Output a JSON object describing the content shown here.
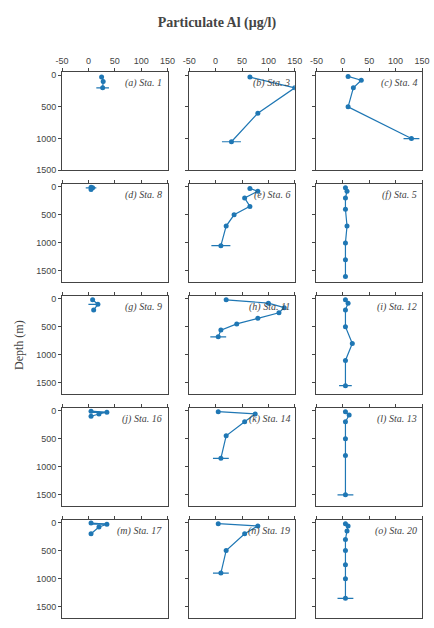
{
  "title": "Particulate Al (μg/l)",
  "ylabel": "Depth (m)",
  "chart_data": [
    {
      "type": "line",
      "title": "(a) Sta. 1",
      "x": [
        25,
        28,
        27
      ],
      "y": [
        30,
        100,
        200
      ],
      "errorbar": {
        "x": 27,
        "y": 200,
        "xerr": 12
      },
      "xlim": [
        -50,
        150
      ],
      "xticks": [
        -50,
        0,
        50,
        100,
        150
      ],
      "ylim": [
        1500,
        -50
      ],
      "yticks": [
        0,
        500,
        1000,
        1500
      ],
      "color": "#1f77b4",
      "marker": "circle",
      "grid": false
    },
    {
      "type": "line",
      "title": "(b) Sta. 3",
      "x": [
        65,
        150,
        80,
        30
      ],
      "y": [
        30,
        200,
        600,
        1050
      ],
      "errorbar": {
        "x": 30,
        "y": 1050,
        "xerr": 18
      },
      "xlim": [
        -50,
        150
      ],
      "xticks": [
        -50,
        0,
        50,
        100,
        150
      ],
      "ylim": [
        1500,
        -50
      ],
      "yticks": [
        0,
        500,
        1000,
        1500
      ],
      "tick_labels": "x",
      "color": "#1f77b4",
      "marker": "circle",
      "grid": false
    },
    {
      "type": "line",
      "title": "(c) Sta. 4",
      "x": [
        10,
        35,
        20,
        10,
        130
      ],
      "y": [
        20,
        80,
        200,
        500,
        1000
      ],
      "errorbar": {
        "x": 130,
        "y": 1000,
        "xerr": 15
      },
      "xlim": [
        -50,
        150
      ],
      "xticks": [
        -50,
        0,
        50,
        100,
        150
      ],
      "ylim": [
        1500,
        -50
      ],
      "yticks": [
        0,
        500,
        1000,
        1500
      ],
      "tick_labels": "x",
      "color": "#1f77b4",
      "marker": "circle",
      "grid": false
    },
    {
      "type": "line",
      "title": "(d) Sta. 8",
      "x": [
        5,
        8,
        5
      ],
      "y": [
        10,
        20,
        50
      ],
      "errorbar": {
        "x": 5,
        "y": 20,
        "xerr": 10
      },
      "xlim": [
        -50,
        150
      ],
      "xticks": [
        -50,
        0,
        50,
        100,
        150
      ],
      "ylim": [
        1700,
        -50
      ],
      "yticks": [
        0,
        500,
        1000,
        1500
      ],
      "tick_labels": "y",
      "color": "#1f77b4",
      "marker": "circle",
      "grid": false
    },
    {
      "type": "line",
      "title": "(e) Sta. 6",
      "x": [
        65,
        80,
        55,
        65,
        35,
        20,
        10
      ],
      "y": [
        30,
        80,
        200,
        350,
        500,
        700,
        1050
      ],
      "errorbar": {
        "x": 10,
        "y": 1050,
        "xerr": 18
      },
      "xlim": [
        -50,
        150
      ],
      "xticks": [
        -50,
        0,
        50,
        100,
        150
      ],
      "ylim": [
        1700,
        -50
      ],
      "yticks": [
        0,
        500,
        1000,
        1500
      ],
      "tick_labels": false,
      "color": "#1f77b4",
      "marker": "circle",
      "grid": false
    },
    {
      "type": "line",
      "title": "(f) Sta. 5",
      "x": [
        5,
        8,
        5,
        5,
        8,
        5,
        5,
        5
      ],
      "y": [
        20,
        80,
        200,
        400,
        700,
        1000,
        1300,
        1600
      ],
      "xlim": [
        -50,
        150
      ],
      "xticks": [
        -50,
        0,
        50,
        100,
        150
      ],
      "ylim": [
        1700,
        -50
      ],
      "yticks": [
        0,
        500,
        1000,
        1500
      ],
      "tick_labels": false,
      "color": "#1f77b4",
      "marker": "circle",
      "grid": false
    },
    {
      "type": "line",
      "title": "(g) Sta. 9",
      "x": [
        8,
        18,
        10
      ],
      "y": [
        20,
        100,
        200
      ],
      "errorbar": {
        "x": 10,
        "y": 100,
        "xerr": 10
      },
      "xlim": [
        -50,
        150
      ],
      "xticks": [
        -50,
        0,
        50,
        100,
        150
      ],
      "ylim": [
        1700,
        -50
      ],
      "yticks": [
        0,
        500,
        1000,
        1500
      ],
      "tick_labels": "y",
      "color": "#1f77b4",
      "marker": "circle",
      "grid": false
    },
    {
      "type": "line",
      "title": "(h) Sta. 11",
      "x": [
        20,
        100,
        130,
        120,
        80,
        40,
        10,
        5
      ],
      "y": [
        20,
        80,
        160,
        250,
        350,
        450,
        560,
        680
      ],
      "errorbar": {
        "x": 5,
        "y": 680,
        "xerr": 15
      },
      "xlim": [
        -50,
        150
      ],
      "xticks": [
        -50,
        0,
        50,
        100,
        150
      ],
      "ylim": [
        1700,
        -50
      ],
      "yticks": [
        0,
        500,
        1000,
        1500
      ],
      "tick_labels": false,
      "color": "#1f77b4",
      "marker": "circle",
      "grid": false
    },
    {
      "type": "line",
      "title": "(i) Sta. 12",
      "x": [
        5,
        10,
        5,
        5,
        18,
        5,
        5
      ],
      "y": [
        20,
        80,
        200,
        500,
        800,
        1100,
        1550
      ],
      "errorbar": {
        "x": 5,
        "y": 1550,
        "xerr": 12
      },
      "xlim": [
        -50,
        150
      ],
      "xticks": [
        -50,
        0,
        50,
        100,
        150
      ],
      "ylim": [
        1700,
        -50
      ],
      "yticks": [
        0,
        500,
        1000,
        1500
      ],
      "tick_labels": false,
      "color": "#1f77b4",
      "marker": "circle",
      "grid": false
    },
    {
      "type": "line",
      "title": "(j) Sta. 16",
      "x": [
        5,
        35,
        20,
        5
      ],
      "y": [
        10,
        30,
        60,
        100
      ],
      "errorbar": {
        "x": 20,
        "y": 30,
        "xerr": 12
      },
      "xlim": [
        -50,
        150
      ],
      "xticks": [
        -50,
        0,
        50,
        100,
        150
      ],
      "ylim": [
        1700,
        -50
      ],
      "yticks": [
        0,
        500,
        1000,
        1500
      ],
      "tick_labels": "y",
      "color": "#1f77b4",
      "marker": "circle",
      "grid": false
    },
    {
      "type": "line",
      "title": "(k) Sta. 14",
      "x": [
        5,
        75,
        55,
        20,
        10
      ],
      "y": [
        20,
        60,
        200,
        450,
        850
      ],
      "errorbar": {
        "x": 10,
        "y": 850,
        "xerr": 15
      },
      "xlim": [
        -50,
        150
      ],
      "xticks": [
        -50,
        0,
        50,
        100,
        150
      ],
      "ylim": [
        1700,
        -50
      ],
      "yticks": [
        0,
        500,
        1000,
        1500
      ],
      "tick_labels": false,
      "color": "#1f77b4",
      "marker": "circle",
      "grid": false
    },
    {
      "type": "line",
      "title": "(l) Sta. 13",
      "x": [
        5,
        12,
        5,
        5,
        5,
        5
      ],
      "y": [
        20,
        80,
        200,
        500,
        800,
        1500
      ],
      "errorbar": {
        "x": 5,
        "y": 1500,
        "xerr": 15
      },
      "xlim": [
        -50,
        150
      ],
      "xticks": [
        -50,
        0,
        50,
        100,
        150
      ],
      "ylim": [
        1700,
        -50
      ],
      "yticks": [
        0,
        500,
        1000,
        1500
      ],
      "tick_labels": false,
      "color": "#1f77b4",
      "marker": "circle",
      "grid": false
    },
    {
      "type": "line",
      "title": "(m) Sta. 17",
      "x": [
        5,
        35,
        20,
        5
      ],
      "y": [
        10,
        30,
        80,
        200
      ],
      "errorbar": {
        "x": 20,
        "y": 30,
        "xerr": 12
      },
      "xlim": [
        -50,
        150
      ],
      "xticks": [
        -50,
        0,
        50,
        100,
        150
      ],
      "ylim": [
        1700,
        -50
      ],
      "yticks": [
        0,
        500,
        1000,
        1500
      ],
      "tick_labels": "y",
      "color": "#1f77b4",
      "marker": "circle",
      "grid": false
    },
    {
      "type": "line",
      "title": "(n) Sta. 19",
      "x": [
        5,
        80,
        55,
        20,
        10
      ],
      "y": [
        20,
        60,
        200,
        500,
        900
      ],
      "errorbar": {
        "x": 10,
        "y": 900,
        "xerr": 15
      },
      "xlim": [
        -50,
        150
      ],
      "xticks": [
        -50,
        0,
        50,
        100,
        150
      ],
      "ylim": [
        1700,
        -50
      ],
      "yticks": [
        0,
        500,
        1000,
        1500
      ],
      "tick_labels": false,
      "color": "#1f77b4",
      "marker": "circle",
      "grid": false
    },
    {
      "type": "line",
      "title": "(o) Sta. 20",
      "x": [
        5,
        10,
        8,
        5,
        5,
        5,
        5,
        5
      ],
      "y": [
        20,
        60,
        150,
        300,
        500,
        750,
        1000,
        1350
      ],
      "errorbar": {
        "x": 5,
        "y": 1350,
        "xerr": 15
      },
      "xlim": [
        -50,
        150
      ],
      "xticks": [
        -50,
        0,
        50,
        100,
        150
      ],
      "ylim": [
        1700,
        -50
      ],
      "yticks": [
        0,
        500,
        1000,
        1500
      ],
      "tick_labels": false,
      "color": "#1f77b4",
      "marker": "circle",
      "grid": false
    }
  ]
}
